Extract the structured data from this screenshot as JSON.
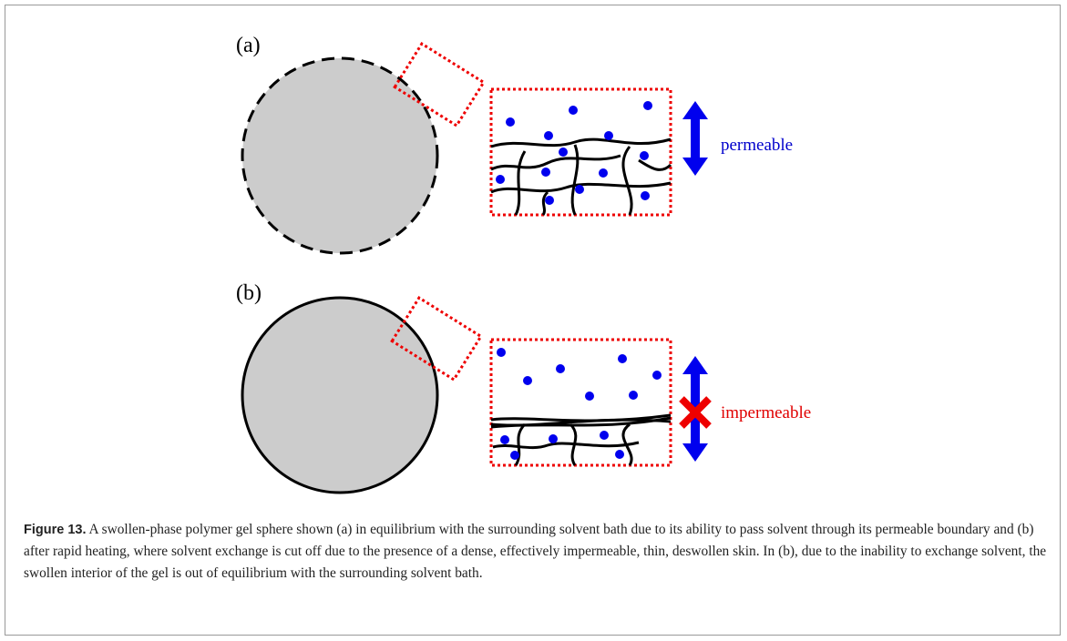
{
  "figure": {
    "panels": [
      {
        "label": "(a)",
        "annotation": "permeable"
      },
      {
        "label": "(b)",
        "annotation": "impermeable"
      }
    ]
  },
  "caption": {
    "label": "Figure 13.",
    "text": "A swollen-phase polymer gel sphere shown (a) in equilibrium with the surrounding solvent bath due to its ability to pass solvent through its permeable boundary and (b) after rapid heating, where solvent exchange is cut off due to the presence of a dense, effectively impermeable, thin, deswollen skin. In (b), due to the inability to exchange solvent, the swollen interior of the gel is out of equilibrium with the surrounding solvent bath."
  }
}
